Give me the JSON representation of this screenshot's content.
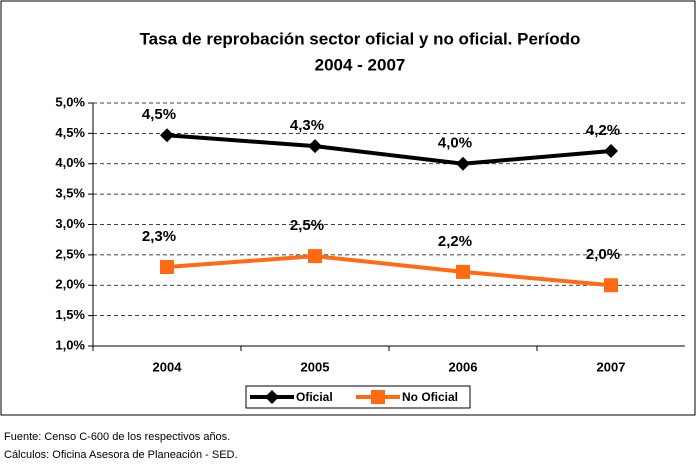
{
  "chart_data": {
    "type": "line",
    "title": [
      "Tasa de reprobación sector oficial y no oficial. Período",
      "2004 - 2007"
    ],
    "categories": [
      "2004",
      "2005",
      "2006",
      "2007"
    ],
    "series": [
      {
        "name": "Oficial",
        "color": "#000000",
        "marker": "diamond",
        "values": [
          4.47,
          4.29,
          4.0,
          4.21
        ],
        "value_labels": [
          "4,5%",
          "4,3%",
          "4,0%",
          "4,2%"
        ]
      },
      {
        "name": "No Oficial",
        "color": "#ff6a13",
        "marker": "square",
        "values": [
          2.3,
          2.48,
          2.22,
          2.0
        ],
        "value_labels": [
          "2,3%",
          "2,5%",
          "2,2%",
          "2,0%"
        ]
      }
    ],
    "ylim": [
      1.0,
      5.0
    ],
    "yticks": [
      {
        "value": 1.0,
        "label": "1,0%"
      },
      {
        "value": 1.5,
        "label": "1,5%"
      },
      {
        "value": 2.0,
        "label": "2,0%"
      },
      {
        "value": 2.5,
        "label": "2,5%"
      },
      {
        "value": 3.0,
        "label": "3,0%"
      },
      {
        "value": 3.5,
        "label": "3,5%"
      },
      {
        "value": 4.0,
        "label": "4,0%"
      },
      {
        "value": 4.5,
        "label": "4,5%"
      },
      {
        "value": 5.0,
        "label": "5,0%"
      }
    ],
    "grid": true,
    "legend": "bottom",
    "notes": [
      "Fuente: Censo C-600 de los respectivos años.",
      "Cálculos: Oficina Asesora de Planeación - SED."
    ]
  }
}
